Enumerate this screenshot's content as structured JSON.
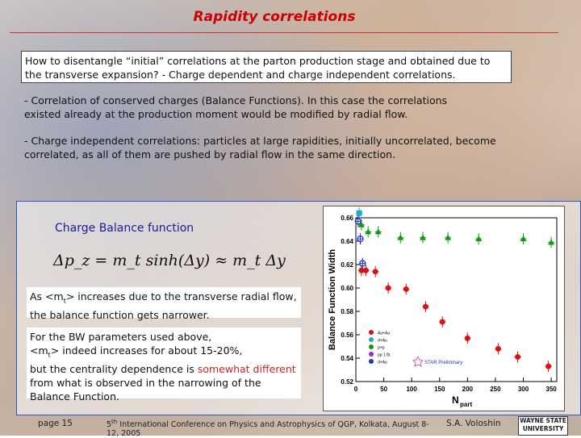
{
  "slide": {
    "title": "Rapidity correlations",
    "intro": "How to disentangle “initial” correlations at the parton production stage and obtained due to the transverse expansion?  - Charge dependent and charge independent correlations.",
    "point1": "- Correlation of conserved charges (Balance Functions). In this case the correlations existed already at the production moment would be modified by radial flow.",
    "point2": "-  Charge independent correlations: particles at large rapidities, initially uncorrelated, become correlated, as all of them are pushed by radial flow in the same direction.",
    "cbf_heading": "Charge Balance function",
    "formula": "Δp_z = m_t sinh(Δy) ≈ m_t Δy",
    "note1_pre": "As <m",
    "note1_sub": "t",
    "note1_post": ">  increases due to the transverse radial flow, the balance function gets narrower.",
    "note2_a": "For the BW parameters used above,",
    "note2_b_pre": "<m",
    "note2_b_sub": "t",
    "note2_b_post": "> indeed increases for about 15-20%,",
    "note2_c": "but the centrality dependence is ",
    "note2_c_hl": "somewhat different",
    "note2_d": " from what is observed in the narrowing of the Balance Function."
  },
  "footer": {
    "page": "page 15",
    "conference_sup": "th",
    "conference_num": "5",
    "conference": "International Conference on Physics and Astrophysics of QGP, Kolkata, August 8-12, 2005",
    "author": "S.A. Voloshin",
    "logo_line1": "WAYNE STATE",
    "logo_line2": "UNIVERSITY"
  },
  "chart_data": {
    "type": "scatter",
    "ylabel": "Balance Function Width",
    "xlabel": "N",
    "xlabel_sub": "part",
    "xlim": [
      0,
      360
    ],
    "ylim": [
      0.52,
      0.66
    ],
    "xticks": [
      0,
      50,
      100,
      150,
      200,
      250,
      300,
      350
    ],
    "yticks": [
      0.52,
      0.54,
      0.56,
      0.58,
      0.6,
      0.62,
      0.64,
      0.66
    ],
    "annotation": "STAR Preliminary",
    "series": [
      {
        "name": "",
        "color": "#119911",
        "marker": "triangle",
        "x": [
          10,
          22,
          40,
          80,
          120,
          165,
          220,
          300,
          350
        ],
        "y": [
          0.654,
          0.648,
          0.648,
          0.643,
          0.643,
          0.643,
          0.642,
          0.642,
          0.639
        ]
      },
      {
        "name": "",
        "color": "#dd1111",
        "marker": "circle",
        "x": [
          10,
          18,
          35,
          58,
          90,
          125,
          155,
          200,
          255,
          290,
          345
        ],
        "y": [
          0.615,
          0.615,
          0.614,
          0.6,
          0.599,
          0.584,
          0.571,
          0.557,
          0.548,
          0.541,
          0.533
        ]
      },
      {
        "name": "",
        "color": "#22aacc",
        "marker": "square",
        "x": [
          6
        ],
        "y": [
          0.664
        ]
      },
      {
        "name": "",
        "color": "#2233cc",
        "marker": "open-circle",
        "x": [
          4,
          8,
          12
        ],
        "y": [
          0.657,
          0.642,
          0.621
        ]
      }
    ],
    "legend_entries": [
      "Au+Au",
      "d+Au",
      "p+p",
      "pp 1 fb",
      "d+Au"
    ]
  }
}
